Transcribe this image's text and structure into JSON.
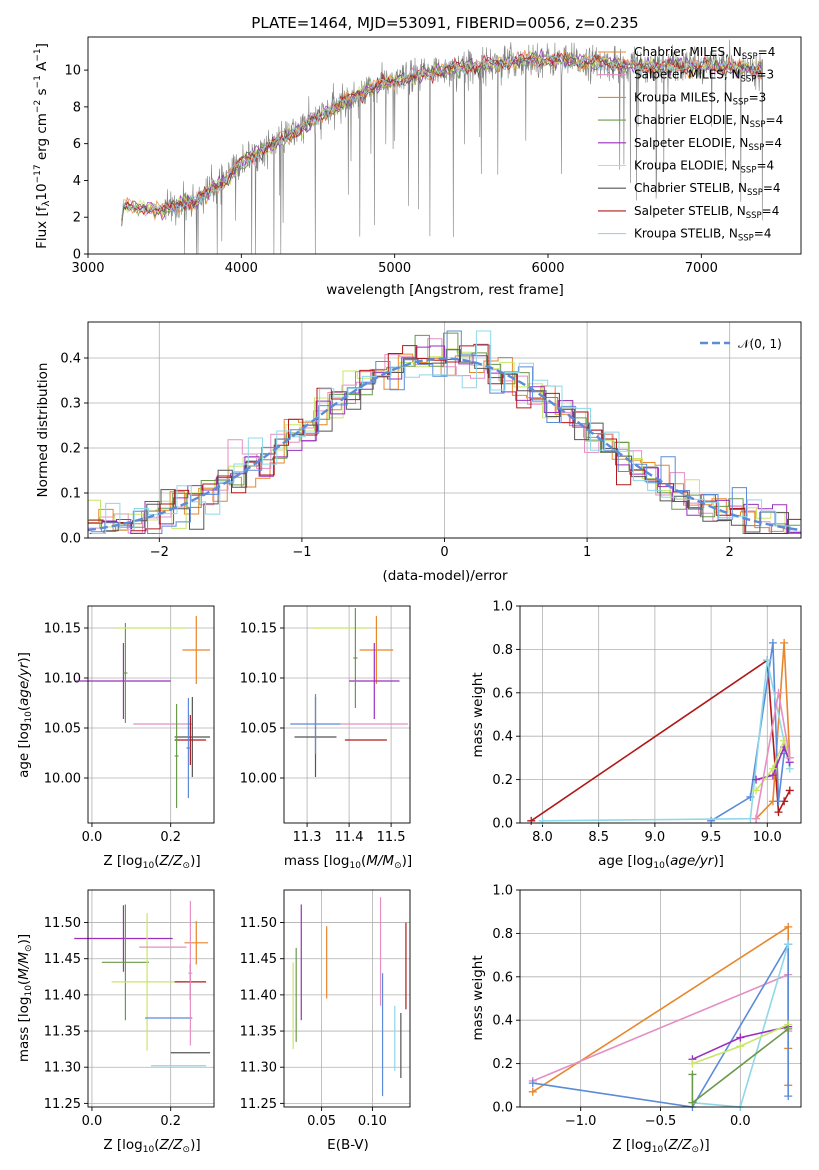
{
  "chart_data": [
    {
      "type": "line",
      "title": "PLATE=1464, MJD=53091, FIBERID=0056, z=0.235",
      "xlabel": "wavelength [Angstrom, rest frame]",
      "ylabel": "Flux [f_λ10^-17 erg cm^-2 s^-1 A^-1]",
      "xlim": [
        3000,
        7650
      ],
      "ylim": [
        0,
        11.8
      ],
      "xticks": [
        "3000",
        "4000",
        "5000",
        "6000",
        "7000"
      ],
      "yticks": [
        "0",
        "2",
        "4",
        "6",
        "8",
        "10"
      ],
      "legend_position": "top-right",
      "series": [
        {
          "name": "Chabrier MILES, N_SSP=4",
          "color": "#e8862a"
        },
        {
          "name": "Salpeter MILES, N_SSP=3",
          "color": "#e58fc5"
        },
        {
          "name": "Kroupa MILES, N_SSP=3",
          "color": "#e8862a"
        },
        {
          "name": "Chabrier ELODIE, N_SSP=4",
          "color": "#6b9a4a"
        },
        {
          "name": "Salpeter ELODIE, N_SSP=4",
          "color": "#9b2fbf"
        },
        {
          "name": "Kroupa ELODIE, N_SSP=4",
          "color": "#c8e66a"
        },
        {
          "name": "Chabrier STELIB, N_SSP=4",
          "color": "#555555"
        },
        {
          "name": "Salpeter STELIB, N_SSP=4",
          "color": "#b01a1a"
        },
        {
          "name": "Kroupa STELIB, N_SSP=4",
          "color": "#8ed8e8"
        }
      ],
      "data_color": "#808080",
      "spectrum_knots_x": [
        3200,
        3230,
        3500,
        3650,
        3700,
        3800,
        3900,
        4000,
        4300,
        4500,
        4700,
        4900,
        5100,
        5300,
        5500,
        5700,
        5900,
        6100,
        6300,
        6500,
        6700,
        6900,
        7100,
        7300,
        7400
      ],
      "spectrum_knots_y": [
        0,
        2.6,
        2.4,
        2.9,
        2.8,
        3.5,
        4.0,
        5.0,
        6.4,
        7.4,
        8.4,
        9.2,
        9.6,
        10.0,
        10.2,
        10.4,
        10.6,
        10.5,
        10.4,
        10.3,
        10.2,
        10.2,
        10.2,
        10.1,
        10.0
      ]
    },
    {
      "type": "histogram",
      "xlabel": "(data-model)/error",
      "ylabel": "Normed distribution",
      "xlim": [
        -2.5,
        2.5
      ],
      "ylim": [
        0,
        0.48
      ],
      "xticks": [
        "−2",
        "−1",
        "0",
        "1",
        "2"
      ],
      "yticks": [
        "0.0",
        "0.1",
        "0.2",
        "0.3",
        "0.4"
      ],
      "legend": "𝒩(0, 1)",
      "legend_position": "top-right",
      "reference_color": "#5b8bd9",
      "bin_width": 0.1,
      "bin_start": -2.5,
      "series_colors": [
        "#e8862a",
        "#e58fc5",
        "#c8e66a",
        "#6b9a4a",
        "#9b2fbf",
        "#b01a1a",
        "#555555",
        "#5b8bd9",
        "#8ed8e8"
      ]
    },
    {
      "type": "scatter",
      "xlabel": "Z [log10(Z/Z⊙)]",
      "ylabel": "age [log10(age/yr)]",
      "xlim": [
        -0.01,
        0.31
      ],
      "ylim": [
        9.955,
        10.172
      ],
      "xticks": [
        "0.0",
        "0.2"
      ],
      "yticks": [
        "10.00",
        "10.05",
        "10.10",
        "10.15"
      ],
      "points": [
        {
          "x": 0.08,
          "y": 10.097,
          "xerr": 0.12,
          "yerr": 0.038,
          "color": "#9b2fbf"
        },
        {
          "x": 0.085,
          "y": 10.105,
          "xerr": 0.005,
          "yerr": 0.05,
          "color": "#6b9a4a"
        },
        {
          "x": 0.15,
          "y": 10.15,
          "xerr": 0.09,
          "yerr": 0.0,
          "color": "#c8e66a"
        },
        {
          "x": 0.265,
          "y": 10.128,
          "xerr": 0.035,
          "yerr": 0.034,
          "color": "#e8862a"
        },
        {
          "x": 0.18,
          "y": 10.054,
          "xerr": 0.075,
          "yerr": 0.0,
          "color": "#e58fc5"
        },
        {
          "x": 0.255,
          "y": 10.041,
          "xerr": 0.045,
          "yerr": 0.04,
          "color": "#555555"
        },
        {
          "x": 0.25,
          "y": 10.038,
          "xerr": 0.04,
          "yerr": 0.025,
          "color": "#b01a1a"
        },
        {
          "x": 0.215,
          "y": 10.022,
          "xerr": 0.005,
          "yerr": 0.052,
          "color": "#6b9a4a"
        },
        {
          "x": 0.245,
          "y": 10.03,
          "xerr": 0.005,
          "yerr": 0.05,
          "color": "#5b8bd9"
        }
      ]
    },
    {
      "type": "scatter",
      "xlabel": "mass [log10(M/M⊙)]",
      "ylabel": "",
      "xlim": [
        11.245,
        11.545
      ],
      "ylim": [
        9.955,
        10.172
      ],
      "xticks": [
        "11.3",
        "11.4",
        "11.5"
      ],
      "yticks": [
        "10.00",
        "10.05",
        "10.10",
        "10.15"
      ],
      "points": [
        {
          "x": 11.38,
          "y": 10.15,
          "xerr": 0.07,
          "yerr": 0.0,
          "color": "#c8e66a"
        },
        {
          "x": 11.465,
          "y": 10.128,
          "xerr": 0.04,
          "yerr": 0.034,
          "color": "#e8862a"
        },
        {
          "x": 11.46,
          "y": 10.097,
          "xerr": 0.06,
          "yerr": 0.038,
          "color": "#9b2fbf"
        },
        {
          "x": 11.415,
          "y": 10.12,
          "xerr": 0.005,
          "yerr": 0.05,
          "color": "#6b9a4a"
        },
        {
          "x": 11.32,
          "y": 10.041,
          "xerr": 0.05,
          "yerr": 0.04,
          "color": "#555555"
        },
        {
          "x": 11.32,
          "y": 10.054,
          "xerr": 0.06,
          "yerr": 0.03,
          "color": "#5b8bd9"
        },
        {
          "x": 11.46,
          "y": 10.054,
          "xerr": 0.08,
          "yerr": 0.0,
          "color": "#e58fc5"
        },
        {
          "x": 11.44,
          "y": 10.038,
          "xerr": 0.05,
          "yerr": 0.0,
          "color": "#b01a1a"
        }
      ]
    },
    {
      "type": "line",
      "xlabel": "age [log10(age/yr)]",
      "ylabel": "mass weight",
      "xlim": [
        7.8,
        10.3
      ],
      "ylim": [
        0,
        1
      ],
      "xticks": [
        "8.0",
        "8.5",
        "9.0",
        "9.5",
        "10.0"
      ],
      "yticks": [
        "0.0",
        "0.2",
        "0.4",
        "0.6",
        "0.8",
        "1.0"
      ],
      "series": [
        {
          "color": "#b01a1a",
          "x": [
            7.9,
            10.0,
            10.1,
            10.15,
            10.2
          ],
          "y": [
            0.01,
            0.75,
            0.05,
            0.1,
            0.15
          ]
        },
        {
          "color": "#e8862a",
          "x": [
            9.9,
            10.05,
            10.15,
            10.2
          ],
          "y": [
            0.02,
            0.1,
            0.83,
            0.3
          ]
        },
        {
          "color": "#5b8bd9",
          "x": [
            9.5,
            9.85,
            10.05,
            10.1,
            10.15
          ],
          "y": [
            0.01,
            0.12,
            0.83,
            0.1,
            0.32
          ]
        },
        {
          "color": "#8ed8e8",
          "x": [
            8.0,
            9.85,
            10.0,
            10.2
          ],
          "y": [
            0.01,
            0.02,
            0.75,
            0.25
          ]
        },
        {
          "color": "#9b2fbf",
          "x": [
            9.9,
            10.05,
            10.15,
            10.2
          ],
          "y": [
            0.2,
            0.22,
            0.35,
            0.28
          ]
        },
        {
          "color": "#c8e66a",
          "x": [
            9.9,
            10.05,
            10.15,
            10.2
          ],
          "y": [
            0.15,
            0.25,
            0.38,
            0.3
          ]
        },
        {
          "color": "#e58fc5",
          "x": [
            9.9,
            10.1,
            10.2
          ],
          "y": [
            0.02,
            0.6,
            0.3
          ]
        }
      ]
    },
    {
      "type": "scatter",
      "xlabel": "Z [log10(Z/Z⊙)]",
      "ylabel": "mass [log10(M/M⊙)]",
      "xlim": [
        -0.01,
        0.31
      ],
      "ylim": [
        11.245,
        11.545
      ],
      "xticks": [
        "0.0",
        "0.2"
      ],
      "yticks": [
        "11.25",
        "11.30",
        "11.35",
        "11.40",
        "11.45",
        "11.50"
      ],
      "points": [
        {
          "x": 0.08,
          "y": 11.478,
          "xerr": 0.125,
          "yerr": 0.046,
          "color": "#9b2fbf"
        },
        {
          "x": 0.085,
          "y": 11.445,
          "xerr": 0.06,
          "yerr": 0.08,
          "color": "#6b9a4a"
        },
        {
          "x": 0.14,
          "y": 11.418,
          "xerr": 0.09,
          "yerr": 0.095,
          "color": "#c8e66a"
        },
        {
          "x": 0.18,
          "y": 11.466,
          "xerr": 0.06,
          "yerr": 0.0,
          "color": "#e58fc5"
        },
        {
          "x": 0.265,
          "y": 11.472,
          "xerr": 0.03,
          "yerr": 0.03,
          "color": "#e8862a"
        },
        {
          "x": 0.25,
          "y": 11.418,
          "xerr": 0.04,
          "yerr": 0.025,
          "color": "#b01a1a"
        },
        {
          "x": 0.25,
          "y": 11.32,
          "xerr": 0.05,
          "yerr": 0.0,
          "color": "#555555"
        },
        {
          "x": 0.195,
          "y": 11.368,
          "xerr": 0.06,
          "yerr": 0.0,
          "color": "#5b8bd9"
        },
        {
          "x": 0.25,
          "y": 11.43,
          "xerr": 0.005,
          "yerr": 0.1,
          "color": "#e58fc5"
        },
        {
          "x": 0.22,
          "y": 11.302,
          "xerr": 0.07,
          "yerr": 0.0,
          "color": "#8ed8e8"
        }
      ]
    },
    {
      "type": "scatter",
      "xlabel": "E(B-V)",
      "ylabel": "",
      "xlim": [
        0.013,
        0.137
      ],
      "ylim": [
        11.245,
        11.545
      ],
      "xticks": [
        "0.05",
        "0.10"
      ],
      "yticks": [
        "11.25",
        "11.30",
        "11.35",
        "11.40",
        "11.45",
        "11.50"
      ],
      "points": [
        {
          "x": 0.022,
          "y": 11.385,
          "yerr": 0.06,
          "color": "#c8e66a"
        },
        {
          "x": 0.025,
          "y": 11.4,
          "yerr": 0.065,
          "color": "#6b9a4a"
        },
        {
          "x": 0.03,
          "y": 11.445,
          "yerr": 0.08,
          "color": "#9b2fbf"
        },
        {
          "x": 0.055,
          "y": 11.445,
          "yerr": 0.05,
          "color": "#e8862a"
        },
        {
          "x": 0.108,
          "y": 11.46,
          "yerr": 0.075,
          "color": "#e58fc5"
        },
        {
          "x": 0.11,
          "y": 11.345,
          "yerr": 0.085,
          "color": "#5b8bd9"
        },
        {
          "x": 0.122,
          "y": 11.34,
          "yerr": 0.045,
          "color": "#8ed8e8"
        },
        {
          "x": 0.128,
          "y": 11.33,
          "yerr": 0.045,
          "color": "#555555"
        },
        {
          "x": 0.133,
          "y": 11.44,
          "yerr": 0.06,
          "color": "#b01a1a"
        }
      ]
    },
    {
      "type": "line",
      "xlabel": "Z [log10(Z/Z⊙)]",
      "ylabel": "mass weight",
      "xlim": [
        -1.38,
        0.38
      ],
      "ylim": [
        0,
        1
      ],
      "xticks": [
        "−1.0",
        "−0.5",
        "0.0"
      ],
      "yticks": [
        "0.0",
        "0.2",
        "0.4",
        "0.6",
        "0.8",
        "1.0"
      ],
      "series": [
        {
          "color": "#e8862a",
          "x": [
            -1.3,
            0.3,
            0.3,
            0.3
          ],
          "y": [
            0.07,
            0.83,
            0.27,
            0.1
          ]
        },
        {
          "color": "#e58fc5",
          "x": [
            -1.3,
            0.3,
            0.3
          ],
          "y": [
            0.12,
            0.61,
            0.35
          ]
        },
        {
          "color": "#5b8bd9",
          "x": [
            -1.3,
            -0.3,
            0.3,
            0.3
          ],
          "y": [
            0.11,
            0.0,
            0.75,
            0.05
          ]
        },
        {
          "color": "#8ed8e8",
          "x": [
            -0.3,
            0.0,
            0.3
          ],
          "y": [
            0.02,
            0.0,
            0.75
          ]
        },
        {
          "color": "#9b2fbf",
          "x": [
            -0.3,
            0.0,
            0.3
          ],
          "y": [
            0.22,
            0.32,
            0.37
          ]
        },
        {
          "color": "#c8e66a",
          "x": [
            -0.3,
            0.0,
            0.3
          ],
          "y": [
            0.2,
            0.28,
            0.38
          ]
        },
        {
          "color": "#6b9a4a",
          "x": [
            -0.3,
            -0.3,
            0.3
          ],
          "y": [
            0.15,
            0.02,
            0.36
          ]
        }
      ]
    }
  ]
}
